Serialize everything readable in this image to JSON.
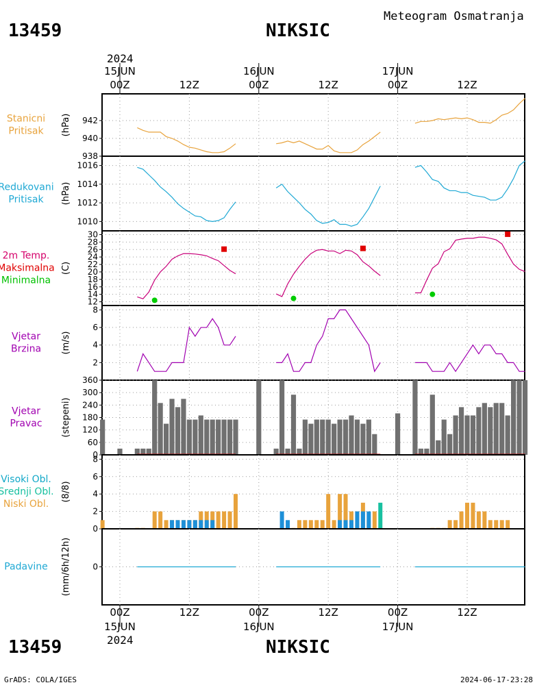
{
  "header": {
    "station_id": "13459",
    "station_name": "NIKSIC",
    "product": "Meteogram Osmatranja"
  },
  "footer": {
    "station_id": "13459",
    "station_name": "NIKSIC",
    "credit": "GrADS: COLA/IGES",
    "timestamp": "2024-06-17-23:28"
  },
  "time_axis": {
    "year": "2024",
    "ticks": [
      {
        "hour": 0,
        "label": "00Z",
        "date": "15JUN"
      },
      {
        "hour": 12,
        "label": "12Z",
        "date": ""
      },
      {
        "hour": 24,
        "label": "00Z",
        "date": "16JUN"
      },
      {
        "hour": 36,
        "label": "12Z",
        "date": ""
      },
      {
        "hour": 48,
        "label": "00Z",
        "date": "17JUN"
      },
      {
        "hour": 60,
        "label": "12Z",
        "date": ""
      }
    ]
  },
  "chart_data": [
    {
      "type": "line",
      "panel": "station_pressure",
      "labels": [
        "Stanicni",
        "Pritisak"
      ],
      "label_color": "#e8a33c",
      "ylabel": "(hPa)",
      "ylim": [
        938,
        945
      ],
      "yticks": [
        938,
        940,
        942
      ],
      "color": "#e8a33c",
      "series": [
        {
          "x": [
            3,
            4,
            5,
            6,
            7,
            8,
            9,
            10,
            11,
            12,
            13,
            14,
            15,
            16,
            17,
            18,
            19,
            20
          ],
          "y": [
            941.2,
            940.9,
            940.7,
            940.7,
            940.7,
            940.2,
            940.0,
            939.7,
            939.3,
            939.0,
            938.9,
            938.7,
            938.5,
            938.4,
            938.4,
            938.5,
            938.9,
            939.4
          ]
        },
        {
          "x": [
            27,
            28,
            29,
            30,
            31,
            32,
            33,
            34,
            35,
            36,
            37,
            38,
            39,
            40,
            41,
            42,
            43,
            44,
            45
          ],
          "y": [
            939.4,
            939.5,
            939.7,
            939.5,
            939.7,
            939.4,
            939.1,
            938.8,
            938.8,
            939.2,
            938.6,
            938.4,
            938.4,
            938.4,
            938.7,
            939.3,
            939.7,
            940.2,
            940.7
          ]
        },
        {
          "x": [
            51,
            52,
            53,
            54,
            55,
            56,
            57,
            58,
            59,
            60,
            61,
            62,
            63,
            64,
            65,
            66,
            67,
            68,
            69,
            70
          ],
          "y": [
            941.7,
            941.9,
            941.9,
            942.0,
            942.2,
            942.1,
            942.2,
            942.3,
            942.2,
            942.3,
            942.1,
            941.8,
            941.8,
            941.7,
            942.1,
            942.6,
            942.8,
            943.2,
            943.9,
            944.5
          ]
        }
      ]
    },
    {
      "type": "line",
      "panel": "reduced_pressure",
      "labels": [
        "Redukovani",
        "Pritisak"
      ],
      "label_color": "#1ea8d4",
      "ylabel": "(hPa)",
      "ylim": [
        1009,
        1017
      ],
      "yticks": [
        1010,
        1012,
        1014,
        1016
      ],
      "color": "#1ea8d4",
      "series": [
        {
          "x": [
            3,
            4,
            5,
            6,
            7,
            8,
            9,
            10,
            11,
            12,
            13,
            14,
            15,
            16,
            17,
            18,
            19,
            20
          ],
          "y": [
            1015.8,
            1015.6,
            1015.0,
            1014.4,
            1013.7,
            1013.2,
            1012.6,
            1011.9,
            1011.4,
            1011.0,
            1010.6,
            1010.5,
            1010.1,
            1010.0,
            1010.1,
            1010.4,
            1011.3,
            1012.1
          ]
        },
        {
          "x": [
            27,
            28,
            29,
            30,
            31,
            32,
            33,
            34,
            35,
            36,
            37,
            38,
            39,
            40,
            41,
            42,
            43,
            44,
            45
          ],
          "y": [
            1013.6,
            1014.0,
            1013.2,
            1012.6,
            1012.0,
            1011.3,
            1010.8,
            1010.1,
            1009.8,
            1009.9,
            1010.2,
            1009.7,
            1009.7,
            1009.5,
            1009.7,
            1010.5,
            1011.4,
            1012.6,
            1013.8
          ]
        },
        {
          "x": [
            51,
            52,
            53,
            54,
            55,
            56,
            57,
            58,
            59,
            60,
            61,
            62,
            63,
            64,
            65,
            66,
            67,
            68,
            69,
            70
          ],
          "y": [
            1015.8,
            1016.0,
            1015.3,
            1014.5,
            1014.3,
            1013.6,
            1013.3,
            1013.3,
            1013.1,
            1013.1,
            1012.8,
            1012.7,
            1012.6,
            1012.3,
            1012.3,
            1012.6,
            1013.5,
            1014.6,
            1016.0,
            1016.5
          ]
        }
      ]
    },
    {
      "type": "line",
      "panel": "temperature",
      "labels": [
        "2m Temp.",
        "Maksimalna",
        "Minimalna"
      ],
      "label_colors": [
        "#d4006a",
        "#e00000",
        "#00c000"
      ],
      "ylabel": "(C)",
      "ylim": [
        11,
        31
      ],
      "yticks": [
        12,
        14,
        16,
        18,
        20,
        22,
        24,
        26,
        28,
        30
      ],
      "color": "#c8007a",
      "series": [
        {
          "x": [
            3,
            4,
            5,
            6,
            7,
            8,
            9,
            10,
            11,
            12,
            13,
            14,
            15,
            16,
            17,
            18,
            19,
            20
          ],
          "y": [
            13.3,
            12.8,
            14.6,
            17.8,
            20.0,
            21.5,
            23.4,
            24.3,
            24.9,
            24.9,
            24.8,
            24.6,
            24.3,
            23.6,
            23.0,
            21.7,
            20.4,
            19.5
          ]
        },
        {
          "x": [
            27,
            28,
            29,
            30,
            31,
            32,
            33,
            34,
            35,
            36,
            37,
            38,
            39,
            40,
            41,
            42,
            43,
            44,
            45
          ],
          "y": [
            14.1,
            13.4,
            16.8,
            19.4,
            21.5,
            23.4,
            24.9,
            25.8,
            26.0,
            25.6,
            25.6,
            24.9,
            25.8,
            25.6,
            24.6,
            22.7,
            21.6,
            20.2,
            19.0
          ]
        },
        {
          "x": [
            51,
            52,
            53,
            54,
            55,
            56,
            57,
            58,
            59,
            60,
            61,
            62,
            63,
            64,
            65,
            66,
            67,
            68,
            69,
            70
          ],
          "y": [
            14.4,
            14.4,
            17.8,
            21.0,
            22.2,
            25.4,
            26.2,
            28.5,
            28.8,
            29.0,
            29.0,
            29.3,
            29.3,
            29.0,
            28.6,
            27.5,
            24.7,
            22.1,
            20.7,
            20.1
          ]
        }
      ],
      "maxima": [
        {
          "x": 18,
          "y": 26.1
        },
        {
          "x": 42,
          "y": 26.3
        },
        {
          "x": 67,
          "y": 30.1
        }
      ],
      "minima": [
        {
          "x": 6,
          "y": 12.4
        },
        {
          "x": 30,
          "y": 12.9
        },
        {
          "x": 54,
          "y": 14.0
        }
      ],
      "max_color": "#e00000",
      "min_color": "#00cc00"
    },
    {
      "type": "line",
      "panel": "wind_speed",
      "labels": [
        "Vjetar",
        "Brzina"
      ],
      "label_color": "#a000b0",
      "ylabel": "(m/s)",
      "ylim": [
        0,
        8.5
      ],
      "yticks": [
        2,
        4,
        6,
        8
      ],
      "color": "#a000b0",
      "series": [
        {
          "x": [
            3,
            4,
            5,
            6,
            7,
            8,
            9,
            10,
            11,
            12,
            13,
            14,
            15,
            16,
            17,
            18,
            19,
            20
          ],
          "y": [
            1,
            3,
            2,
            1,
            1,
            1,
            2,
            2,
            2,
            6,
            5,
            6,
            6,
            7,
            6,
            4,
            4,
            5
          ]
        },
        {
          "x": [
            27,
            28,
            29,
            30,
            31,
            32,
            33,
            34,
            35,
            36,
            37,
            38,
            39,
            40,
            41,
            42,
            43,
            44,
            45
          ],
          "y": [
            2,
            2,
            3,
            1,
            1,
            2,
            2,
            4,
            5,
            7,
            7,
            8,
            8,
            7,
            6,
            5,
            4,
            1,
            2
          ]
        },
        {
          "x": [
            51,
            52,
            53,
            54,
            55,
            56,
            57,
            58,
            59,
            60,
            61,
            62,
            63,
            64,
            65,
            66,
            67,
            68,
            69,
            70
          ],
          "y": [
            2,
            2,
            2,
            1,
            1,
            1,
            2,
            1,
            2,
            3,
            4,
            3,
            4,
            4,
            3,
            3,
            2,
            2,
            1,
            1
          ]
        }
      ]
    },
    {
      "type": "bar",
      "panel": "wind_direction",
      "labels": [
        "Vjetar",
        "Pravac"
      ],
      "label_color": "#a000b0",
      "ylabel": "(stepeni)",
      "ylim": [
        0,
        360
      ],
      "yticks": [
        0,
        60,
        120,
        180,
        240,
        300,
        360
      ],
      "color": "#707070",
      "x": [
        -3,
        0,
        3,
        4,
        5,
        6,
        7,
        8,
        9,
        10,
        11,
        12,
        13,
        14,
        15,
        16,
        17,
        18,
        19,
        20,
        24,
        27,
        28,
        29,
        30,
        31,
        32,
        33,
        34,
        35,
        36,
        37,
        38,
        39,
        40,
        41,
        42,
        43,
        44,
        45,
        48,
        51,
        52,
        53,
        54,
        55,
        56,
        57,
        58,
        59,
        60,
        61,
        62,
        63,
        64,
        65,
        66,
        67,
        68,
        69,
        70
      ],
      "values": [
        170,
        30,
        30,
        30,
        30,
        360,
        250,
        150,
        270,
        230,
        270,
        170,
        170,
        190,
        170,
        170,
        170,
        170,
        170,
        170,
        360,
        30,
        360,
        30,
        290,
        30,
        170,
        150,
        170,
        170,
        170,
        150,
        170,
        170,
        190,
        170,
        150,
        170,
        100,
        0,
        200,
        360,
        30,
        30,
        290,
        70,
        170,
        100,
        190,
        230,
        190,
        190,
        230,
        250,
        230,
        250,
        250,
        190,
        360,
        360,
        360
      ]
    },
    {
      "type": "bar",
      "panel": "cloud_cover",
      "labels": [
        "Visoki Obl.",
        "Srednji Obl.",
        "Niski Obl."
      ],
      "label_colors": [
        "#12a8c8",
        "#18c0a0",
        "#e8a33c"
      ],
      "ylabel": "(8/8)",
      "ylim": [
        0,
        8.5
      ],
      "yticks": [
        0,
        2,
        4,
        6,
        8
      ],
      "series": [
        {
          "name": "Niski Obl.",
          "color": "#e8a33c",
          "x": [
            -3,
            3,
            4,
            6,
            7,
            8,
            9,
            10,
            11,
            12,
            13,
            14,
            15,
            16,
            17,
            18,
            19,
            20,
            30,
            31,
            32,
            33,
            34,
            35,
            36,
            37,
            38,
            39,
            40,
            41,
            42,
            43,
            44,
            45,
            54,
            55,
            56,
            57,
            58,
            59,
            60,
            61,
            62,
            63,
            64,
            65,
            66,
            67
          ],
          "values": [
            1,
            0.1,
            0.1,
            2,
            2,
            1,
            1,
            1,
            1,
            1,
            1,
            2,
            2,
            2,
            2,
            2,
            2,
            4,
            0.1,
            1,
            1,
            1,
            1,
            1,
            4,
            1,
            4,
            4,
            2,
            2,
            3,
            1,
            2,
            0.1,
            0.1,
            0.1,
            0.1,
            1,
            1,
            2,
            3,
            3,
            2,
            2,
            1,
            1,
            1,
            1
          ]
        },
        {
          "name": "Visoki Obl.",
          "color": "#1e90d8",
          "x": [
            9,
            10,
            11,
            12,
            13,
            14,
            15,
            16,
            28,
            29,
            38,
            39,
            40,
            41,
            42,
            43
          ],
          "values": [
            1,
            1,
            1,
            1,
            1,
            1,
            1,
            1,
            2,
            1,
            1,
            1,
            1,
            2,
            2,
            2
          ]
        },
        {
          "name": "Srednji Obl.",
          "color": "#18c0a0",
          "x": [
            45
          ],
          "values": [
            3
          ]
        }
      ]
    },
    {
      "type": "line",
      "panel": "precipitation",
      "labels": [
        "Padavine"
      ],
      "label_color": "#1ea8d4",
      "ylabel": "(mm/6h/12h)",
      "ylim": [
        -1,
        1
      ],
      "yticks": [
        0
      ],
      "color": "#1ea8d4",
      "series": [
        {
          "x": [
            3,
            20
          ],
          "y": [
            0,
            0
          ]
        },
        {
          "x": [
            27,
            45
          ],
          "y": [
            0,
            0
          ]
        },
        {
          "x": [
            51,
            70
          ],
          "y": [
            0,
            0
          ]
        }
      ]
    }
  ]
}
